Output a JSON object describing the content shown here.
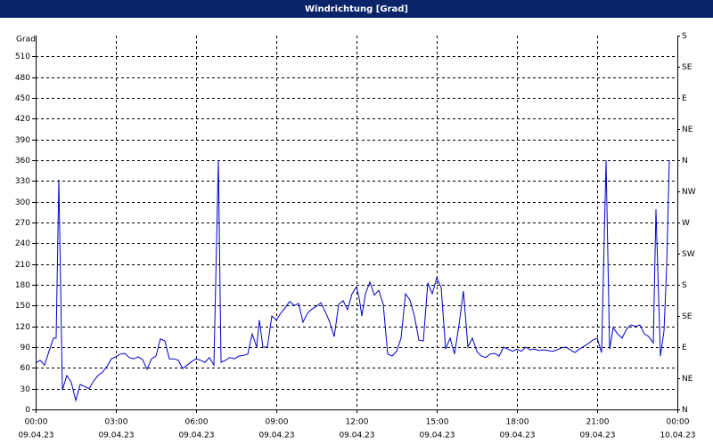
{
  "chart_data": {
    "type": "line",
    "title": "Windrichtung [Grad]",
    "ylabel": "Grad",
    "color": "#0000cc",
    "grid": true,
    "xlim": [
      0,
      1440
    ],
    "xticks": [
      {
        "value": 0,
        "label": "00:00"
      },
      {
        "value": 180,
        "label": "03:00"
      },
      {
        "value": 360,
        "label": "06:00"
      },
      {
        "value": 540,
        "label": "09:00"
      },
      {
        "value": 720,
        "label": "12:00"
      },
      {
        "value": 900,
        "label": "15:00"
      },
      {
        "value": 1080,
        "label": "18:00"
      },
      {
        "value": 1260,
        "label": "21:00"
      },
      {
        "value": 1440,
        "label": "00:00"
      }
    ],
    "xtick_dates": [
      "09.04.23",
      "09.04.23",
      "09.04.23",
      "09.04.23",
      "09.04.23",
      "09.04.23",
      "09.04.23",
      "09.04.23",
      "10.04.23"
    ],
    "ylim": [
      0,
      540
    ],
    "yticks": [
      0,
      30,
      60,
      90,
      120,
      150,
      180,
      210,
      240,
      270,
      300,
      330,
      360,
      390,
      420,
      450,
      480,
      510
    ],
    "y2lim": [
      0,
      540
    ],
    "y2ticks": [
      {
        "value": 0,
        "label": "N"
      },
      {
        "value": 45,
        "label": "NE"
      },
      {
        "value": 90,
        "label": "E"
      },
      {
        "value": 135,
        "label": "SE"
      },
      {
        "value": 180,
        "label": "S"
      },
      {
        "value": 225,
        "label": "SW"
      },
      {
        "value": 270,
        "label": "W"
      },
      {
        "value": 315,
        "label": "NW"
      },
      {
        "value": 360,
        "label": "N"
      },
      {
        "value": 405,
        "label": "NE"
      },
      {
        "value": 450,
        "label": "E"
      },
      {
        "value": 495,
        "label": "SE"
      },
      {
        "value": 540,
        "label": "S"
      }
    ],
    "x": [
      0,
      10,
      20,
      30,
      40,
      46,
      52,
      60,
      70,
      80,
      90,
      100,
      110,
      120,
      130,
      140,
      150,
      160,
      170,
      180,
      190,
      200,
      210,
      220,
      230,
      240,
      250,
      260,
      270,
      280,
      290,
      300,
      310,
      320,
      330,
      340,
      350,
      360,
      370,
      380,
      390,
      400,
      410,
      416,
      426,
      436,
      446,
      456,
      466,
      476,
      486,
      496,
      502,
      510,
      520,
      530,
      540,
      550,
      560,
      570,
      580,
      590,
      600,
      610,
      620,
      630,
      640,
      650,
      660,
      670,
      680,
      690,
      700,
      710,
      720,
      726,
      732,
      740,
      750,
      760,
      770,
      780,
      790,
      800,
      810,
      820,
      830,
      840,
      850,
      860,
      870,
      880,
      890,
      900,
      910,
      920,
      930,
      940,
      950,
      960,
      970,
      980,
      990,
      1000,
      1010,
      1020,
      1030,
      1040,
      1050,
      1060,
      1070,
      1080,
      1090,
      1100,
      1110,
      1120,
      1130,
      1140,
      1150,
      1160,
      1170,
      1180,
      1190,
      1200,
      1210,
      1220,
      1230,
      1240,
      1250,
      1260,
      1270,
      1280,
      1288,
      1296,
      1306,
      1316,
      1326,
      1336,
      1346,
      1356,
      1366,
      1376,
      1386,
      1392,
      1402,
      1410,
      1416,
      1422
    ],
    "values": [
      67,
      71,
      64,
      84,
      103,
      103,
      332,
      28,
      49,
      39,
      13,
      36,
      33,
      30,
      41,
      49,
      54,
      62,
      73,
      76,
      80,
      81,
      75,
      73,
      76,
      72,
      58,
      73,
      77,
      102,
      99,
      73,
      73,
      71,
      59,
      64,
      69,
      73,
      71,
      68,
      75,
      64,
      360,
      68,
      71,
      75,
      73,
      77,
      78,
      80,
      109,
      90,
      129,
      90,
      90,
      135,
      129,
      139,
      147,
      156,
      150,
      153,
      126,
      139,
      145,
      149,
      154,
      141,
      126,
      105,
      152,
      157,
      144,
      167,
      177,
      161,
      135,
      167,
      184,
      165,
      172,
      152,
      80,
      77,
      84,
      103,
      167,
      158,
      135,
      100,
      99,
      183,
      167,
      190,
      176,
      87,
      103,
      80,
      122,
      171,
      90,
      103,
      84,
      77,
      75,
      80,
      81,
      77,
      90,
      87,
      84,
      87,
      84,
      90,
      86,
      87,
      85,
      86,
      85,
      84,
      86,
      89,
      90,
      86,
      82,
      87,
      91,
      95,
      100,
      103,
      82,
      360,
      87,
      118,
      109,
      103,
      116,
      122,
      120,
      122,
      109,
      105,
      96,
      289,
      77,
      113,
      206,
      360
    ]
  }
}
